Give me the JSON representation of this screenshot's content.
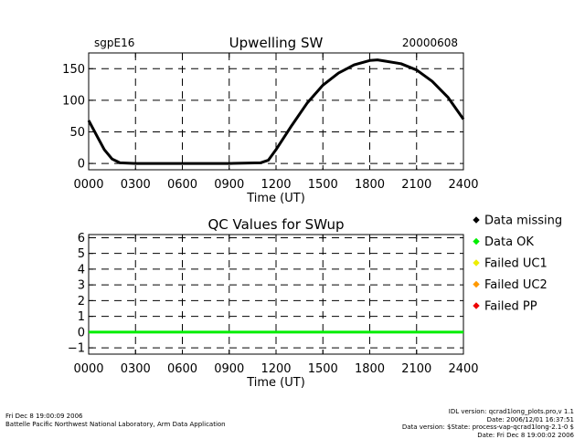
{
  "chart_data": [
    {
      "type": "line",
      "title": "Upwelling SW",
      "site_label": "sgpE16",
      "date_label": "20000608",
      "xlabel": "Time (UT)",
      "ylabel": "",
      "xlim": [
        0,
        24
      ],
      "ylim": [
        -10,
        175
      ],
      "x_ticks": [
        0,
        3,
        6,
        9,
        12,
        15,
        18,
        21,
        24
      ],
      "x_tick_labels": [
        "0000",
        "0300",
        "0600",
        "0900",
        "1200",
        "1500",
        "1800",
        "2100",
        "2400"
      ],
      "y_ticks": [
        0,
        50,
        100,
        150
      ],
      "y_tick_labels": [
        "0",
        "50",
        "100",
        "150"
      ],
      "grid": "dashed",
      "series": [
        {
          "name": "SWup",
          "color": "#000000",
          "x": [
            0,
            0.5,
            1,
            1.5,
            2,
            3,
            6,
            9,
            11,
            11.5,
            12,
            13,
            14,
            15,
            16,
            17,
            18,
            18.5,
            19,
            20,
            21,
            22,
            23,
            24
          ],
          "y": [
            68,
            45,
            22,
            7,
            1,
            0,
            0,
            0,
            1,
            5,
            22,
            60,
            96,
            124,
            143,
            156,
            163,
            164,
            162,
            158,
            148,
            130,
            105,
            70
          ]
        }
      ]
    },
    {
      "type": "line",
      "title": "QC Values for SWup",
      "xlabel": "Time (UT)",
      "ylabel": "",
      "xlim": [
        0,
        24
      ],
      "ylim": [
        -1.4,
        6.2
      ],
      "x_ticks": [
        0,
        3,
        6,
        9,
        12,
        15,
        18,
        21,
        24
      ],
      "x_tick_labels": [
        "0000",
        "0300",
        "0600",
        "0900",
        "1200",
        "1500",
        "1800",
        "2100",
        "2400"
      ],
      "y_ticks": [
        -1,
        0,
        1,
        2,
        3,
        4,
        5,
        6
      ],
      "y_tick_labels": [
        "−1",
        "0",
        "1",
        "2",
        "3",
        "4",
        "5",
        "6"
      ],
      "grid": "dashed",
      "series": [
        {
          "name": "QC",
          "color": "#00ee00",
          "x": [
            0,
            24
          ],
          "y": [
            0,
            0
          ]
        }
      ],
      "legend": {
        "placement": "right",
        "entries": [
          {
            "label": "Data missing",
            "color": "#000000"
          },
          {
            "label": "Data OK",
            "color": "#00ee00"
          },
          {
            "label": "Failed UC1",
            "color": "#eeee00"
          },
          {
            "label": "Failed UC2",
            "color": "#ff9900"
          },
          {
            "label": "Failed PP",
            "color": "#ee0000"
          }
        ]
      }
    }
  ],
  "footer": {
    "left_line1": "Fri Dec  8 19:00:09 2006",
    "left_line2": "Battelle Pacific Northwest National Laboratory, Arm Data Application",
    "right_line1": "IDL version: qcrad1long_plots.pro,v 1.1",
    "right_line2": "Date: 2006/12/01 16:37:51",
    "right_line3": "Data version: $State: process-vap-qcrad1long-2.1-0 $",
    "right_line4": "Date: Fri Dec  8 19:00:02 2006"
  }
}
